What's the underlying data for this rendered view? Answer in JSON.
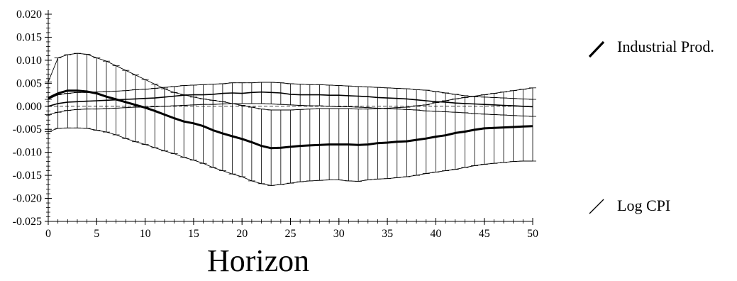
{
  "chart_data": {
    "type": "line",
    "title": "",
    "xlabel": "Horizon",
    "ylabel": "",
    "xlim": [
      0,
      50
    ],
    "ylim": [
      -0.025,
      0.02
    ],
    "x_ticks": [
      0,
      5,
      10,
      15,
      20,
      25,
      30,
      35,
      40,
      45,
      50
    ],
    "x_tick_labels": [
      "0",
      "5",
      "10",
      "15",
      "20",
      "25",
      "30",
      "35",
      "40",
      "45",
      "50"
    ],
    "y_ticks": [
      0.02,
      0.015,
      0.01,
      0.005,
      0.0,
      -0.005,
      -0.01,
      -0.015,
      -0.02,
      -0.025
    ],
    "y_tick_labels": [
      "0.020",
      "0.015",
      "0.010",
      "0.005",
      "0.000",
      "-0.005",
      "-0.010",
      "-0.015",
      "-0.020",
      "-0.025"
    ],
    "grid": false,
    "legend_position": "right",
    "x": [
      0,
      1,
      2,
      3,
      4,
      5,
      6,
      7,
      8,
      9,
      10,
      11,
      12,
      13,
      14,
      15,
      16,
      17,
      18,
      19,
      20,
      21,
      22,
      23,
      24,
      25,
      26,
      27,
      28,
      29,
      30,
      31,
      32,
      33,
      34,
      35,
      36,
      37,
      38,
      39,
      40,
      41,
      42,
      43,
      44,
      45,
      46,
      47,
      48,
      49,
      50
    ],
    "series": [
      {
        "name": "Industrial Prod.",
        "style": "thick",
        "values": [
          0.0018,
          0.0028,
          0.0034,
          0.0034,
          0.0032,
          0.0028,
          0.0021,
          0.0015,
          0.0009,
          0.0003,
          -0.0003,
          -0.001,
          -0.0018,
          -0.0026,
          -0.0033,
          -0.0037,
          -0.0043,
          -0.0052,
          -0.0059,
          -0.0065,
          -0.0071,
          -0.0078,
          -0.0086,
          -0.0091,
          -0.009,
          -0.0088,
          -0.0086,
          -0.0085,
          -0.0084,
          -0.0083,
          -0.0083,
          -0.0083,
          -0.0084,
          -0.0083,
          -0.008,
          -0.0079,
          -0.0077,
          -0.0076,
          -0.0073,
          -0.007,
          -0.0066,
          -0.0063,
          -0.0058,
          -0.0055,
          -0.0051,
          -0.0048,
          -0.0047,
          -0.0046,
          -0.0045,
          -0.0044,
          -0.0043
        ],
        "upper": [
          0.0053,
          0.0105,
          0.0112,
          0.0115,
          0.0113,
          0.0105,
          0.0098,
          0.0088,
          0.0078,
          0.0068,
          0.0058,
          0.0048,
          0.0038,
          0.003,
          0.0025,
          0.002,
          0.0016,
          0.0013,
          0.001,
          0.0006,
          0.0002,
          -0.0002,
          -0.0006,
          -0.0008,
          -0.0008,
          -0.0008,
          -0.0007,
          -0.0006,
          -0.0005,
          -0.0005,
          -0.0005,
          -0.0005,
          -0.0006,
          -0.0006,
          -0.0005,
          -0.0004,
          -0.0003,
          -0.0002,
          0.0001,
          0.0003,
          0.0008,
          0.0012,
          0.0016,
          0.0019,
          0.0022,
          0.0025,
          0.0028,
          0.0031,
          0.0034,
          0.0037,
          0.004
        ],
        "lower": [
          -0.0055,
          -0.0048,
          -0.0047,
          -0.0047,
          -0.0048,
          -0.0052,
          -0.0056,
          -0.0062,
          -0.007,
          -0.0077,
          -0.0083,
          -0.009,
          -0.0097,
          -0.0103,
          -0.0111,
          -0.0117,
          -0.0124,
          -0.0133,
          -0.014,
          -0.0147,
          -0.0153,
          -0.0162,
          -0.0168,
          -0.0172,
          -0.017,
          -0.0167,
          -0.0164,
          -0.0162,
          -0.0161,
          -0.016,
          -0.016,
          -0.0162,
          -0.0163,
          -0.016,
          -0.0158,
          -0.0157,
          -0.0155,
          -0.0153,
          -0.015,
          -0.0146,
          -0.0143,
          -0.014,
          -0.0137,
          -0.0133,
          -0.0129,
          -0.0126,
          -0.0124,
          -0.0122,
          -0.012,
          -0.0119,
          -0.0119
        ]
      },
      {
        "name": "Log CPI",
        "style": "thin",
        "values": [
          0.0,
          0.0006,
          0.0009,
          0.001,
          0.0011,
          0.0012,
          0.0013,
          0.0014,
          0.0015,
          0.0016,
          0.0017,
          0.0018,
          0.002,
          0.0022,
          0.0024,
          0.0025,
          0.0025,
          0.0026,
          0.0028,
          0.0029,
          0.0028,
          0.003,
          0.0031,
          0.003,
          0.0029,
          0.0026,
          0.0025,
          0.0025,
          0.0025,
          0.0024,
          0.0024,
          0.0023,
          0.0022,
          0.0021,
          0.0019,
          0.0018,
          0.0017,
          0.0016,
          0.0014,
          0.0012,
          0.001,
          0.0009,
          0.0007,
          0.0006,
          0.0005,
          0.0004,
          0.0003,
          0.0002,
          0.0001,
          0.0,
          -0.0001
        ],
        "upper": [
          0.0015,
          0.0025,
          0.0028,
          0.003,
          0.003,
          0.0031,
          0.0032,
          0.0033,
          0.0034,
          0.0036,
          0.0037,
          0.0039,
          0.0041,
          0.0043,
          0.0045,
          0.0046,
          0.0047,
          0.0048,
          0.0049,
          0.0051,
          0.0051,
          0.0051,
          0.0052,
          0.0052,
          0.0051,
          0.0049,
          0.0048,
          0.0047,
          0.0047,
          0.0046,
          0.0045,
          0.0044,
          0.0043,
          0.0042,
          0.0041,
          0.004,
          0.0039,
          0.0038,
          0.0036,
          0.0035,
          0.0032,
          0.0029,
          0.0026,
          0.0023,
          0.0021,
          0.002,
          0.0019,
          0.0018,
          0.0017,
          0.0016,
          0.0015
        ],
        "lower": [
          -0.0018,
          -0.0013,
          -0.0009,
          -0.0007,
          -0.0006,
          -0.0006,
          -0.0005,
          -0.0004,
          -0.0003,
          -0.0002,
          -0.0002,
          -0.0001,
          0.0,
          0.0001,
          0.0002,
          0.0003,
          0.0004,
          0.0004,
          0.0005,
          0.0006,
          0.0006,
          0.0006,
          0.0006,
          0.0005,
          0.0004,
          0.0003,
          0.0002,
          0.0001,
          0.0001,
          0.0,
          -0.0001,
          -0.0001,
          -0.0002,
          -0.0003,
          -0.0004,
          -0.0005,
          -0.0006,
          -0.0007,
          -0.0008,
          -0.001,
          -0.0011,
          -0.0012,
          -0.0013,
          -0.0014,
          -0.0016,
          -0.0017,
          -0.0018,
          -0.0019,
          -0.002,
          -0.0021,
          -0.0022
        ]
      }
    ]
  }
}
